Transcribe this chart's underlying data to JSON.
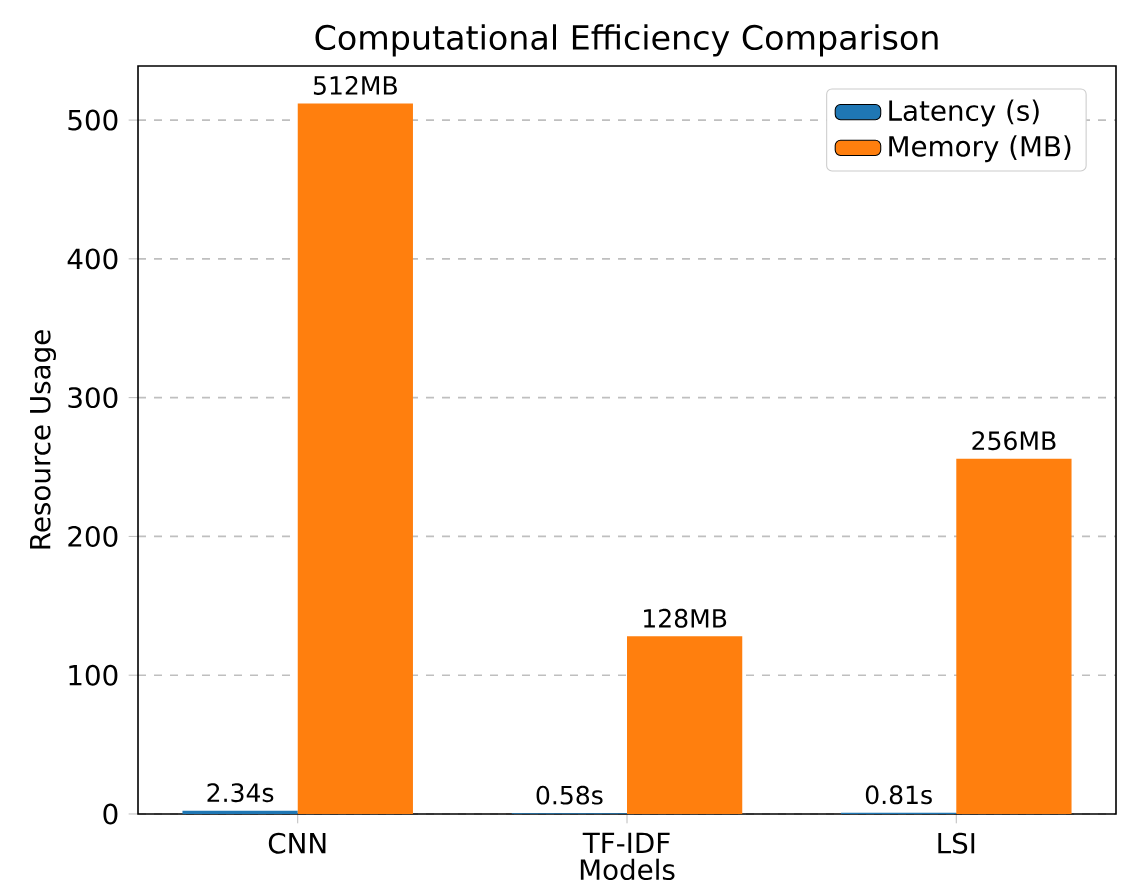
{
  "chart_data": {
    "type": "bar",
    "title": "Computational Efficiency Comparison",
    "xlabel": "Models",
    "ylabel": "Resource Usage",
    "categories": [
      "CNN",
      "TF-IDF",
      "LSI"
    ],
    "series": [
      {
        "name": "Latency (s)",
        "color": "#1f77b4",
        "values": [
          2.34,
          0.58,
          0.81
        ],
        "value_labels": [
          "2.34s",
          "0.58s",
          "0.81s"
        ]
      },
      {
        "name": "Memory (MB)",
        "color": "#ff7f0e",
        "values": [
          512,
          128,
          256
        ],
        "value_labels": [
          "512MB",
          "128MB",
          "256MB"
        ]
      }
    ],
    "ylim": [
      0,
      539
    ],
    "yticks": [
      0,
      100,
      200,
      300,
      400,
      500
    ],
    "grid": "y",
    "legend": "top right"
  }
}
